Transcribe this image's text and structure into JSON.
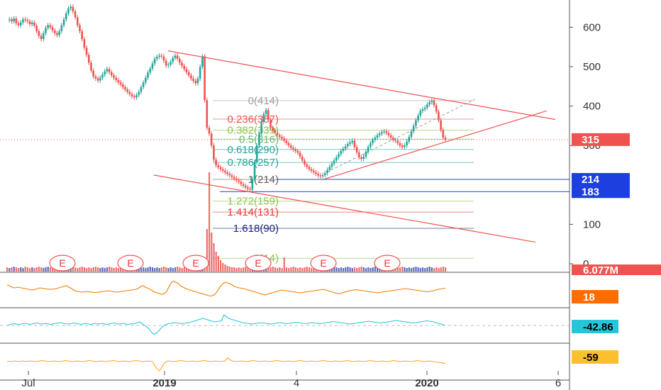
{
  "chart_data": {
    "type": "candlestick",
    "price_axis": {
      "ticks": [
        "600",
        "500",
        "400",
        "300",
        "100",
        "0"
      ],
      "tick_values": [
        600,
        500,
        400,
        300,
        100,
        0
      ],
      "ylim": [
        -5,
        660
      ]
    },
    "time_axis": {
      "ticks": [
        "Jul",
        "2019",
        "4",
        "2020",
        "6"
      ]
    },
    "price_series": [
      618,
      620,
      615,
      622,
      610,
      605,
      612,
      620,
      618,
      615,
      608,
      612,
      604,
      590,
      578,
      570,
      585,
      598,
      605,
      600,
      592,
      585,
      580,
      590,
      605,
      620,
      635,
      648,
      652,
      640,
      625,
      605,
      590,
      570,
      548,
      530,
      510,
      490,
      475,
      470,
      465,
      472,
      480,
      488,
      494,
      486,
      478,
      472,
      466,
      460,
      455,
      448,
      442,
      436,
      430,
      425,
      422,
      428,
      436,
      448,
      460,
      472,
      485,
      495,
      508,
      520,
      525,
      528,
      526,
      515,
      503,
      505,
      512,
      522,
      528,
      520,
      510,
      502,
      494,
      486,
      478,
      470,
      464,
      458,
      470,
      500,
      526,
      415,
      345,
      330,
      300,
      264,
      250,
      245,
      240,
      236,
      232,
      228,
      224,
      220,
      216,
      212,
      208,
      202,
      198,
      194,
      190,
      188,
      215,
      258,
      300,
      330,
      360,
      380,
      390,
      365,
      345,
      338,
      332,
      326,
      322,
      318,
      312,
      306,
      300,
      294,
      290,
      286,
      282,
      272,
      262,
      252,
      246,
      240,
      236,
      232,
      228,
      224,
      222,
      225,
      230,
      238,
      246,
      254,
      262,
      270,
      278,
      286,
      292,
      298,
      304,
      308,
      312,
      296,
      282,
      270,
      266,
      272,
      284,
      296,
      306,
      314,
      320,
      326,
      330,
      334,
      336,
      332,
      326,
      320,
      314,
      312,
      306,
      300,
      296,
      300,
      310,
      322,
      336,
      350,
      364,
      376,
      388,
      392,
      396,
      404,
      410,
      414,
      402,
      386,
      364,
      340,
      320,
      315
    ],
    "volume_series": [
      6,
      5,
      6,
      7,
      6,
      5,
      6,
      5,
      7,
      6,
      5,
      6,
      5,
      6,
      7,
      6,
      5,
      6,
      7,
      6,
      5,
      6,
      5,
      6,
      7,
      6,
      5,
      6,
      5,
      7,
      6,
      5,
      6,
      7,
      6,
      5,
      6,
      5,
      6,
      7,
      6,
      5,
      6,
      5,
      6,
      7,
      6,
      5,
      6,
      5,
      6,
      7,
      6,
      5,
      6,
      5,
      6,
      7,
      6,
      5,
      6,
      5,
      6,
      7,
      6,
      5,
      6,
      5,
      6,
      7,
      6,
      5,
      6,
      5,
      6,
      7,
      6,
      5,
      6,
      5,
      6,
      7,
      6,
      5,
      6,
      5,
      6,
      7,
      60,
      140,
      55,
      40,
      28,
      22,
      16,
      12,
      10,
      8,
      7,
      6,
      6,
      5,
      6,
      5,
      6,
      7,
      6,
      5,
      6,
      5,
      6,
      7,
      6,
      5,
      6,
      5,
      6,
      7,
      6,
      5,
      6,
      5,
      20,
      6,
      5,
      6,
      7,
      6,
      5,
      6,
      5,
      6,
      7,
      6,
      5,
      6,
      5,
      6,
      7,
      6,
      5,
      6,
      5,
      6,
      7,
      6,
      5,
      6,
      5,
      6,
      7,
      6,
      5,
      6,
      5,
      6,
      7,
      6,
      5,
      6,
      5,
      6,
      7,
      6,
      5,
      6,
      5,
      6,
      7,
      6,
      5,
      6,
      5,
      6,
      7,
      6,
      5,
      6,
      5,
      6,
      7,
      6,
      5,
      6,
      5,
      6,
      7,
      6,
      5,
      6,
      5,
      6,
      7,
      6,
      5,
      6,
      5,
      6,
      7
    ],
    "fib_levels": [
      {
        "label": "0(414)",
        "value": 414,
        "color": "#9e9e9e"
      },
      {
        "label": "0.236(367)",
        "value": 367,
        "color": "#ef5350"
      },
      {
        "label": "0.382(339)",
        "value": 339,
        "color": "#8bc34a"
      },
      {
        "label": "0.5(316)",
        "value": 316,
        "color": "#66bb6a"
      },
      {
        "label": "0.618(290)",
        "value": 290,
        "color": "#26a69a"
      },
      {
        "label": "0.786(257)",
        "value": 257,
        "color": "#26a69a"
      },
      {
        "label": "1(214)",
        "value": 214,
        "color": "#616161"
      },
      {
        "label": "1.272(159)",
        "value": 159,
        "color": "#8bc34a"
      },
      {
        "label": "1.414(131)",
        "value": 131,
        "color": "#e53935"
      },
      {
        "label": "1.618(90)",
        "value": 90,
        "color": "#1a237e"
      },
      {
        "label": "2(14)",
        "value": 14,
        "color": "#8bc34a"
      }
    ],
    "price_badges": [
      {
        "text": "315",
        "value": 315,
        "bg": "#ef5350",
        "fg": "#ffffff"
      },
      {
        "text": "214",
        "value": 214,
        "bg": "#1e3fe0",
        "fg": "#ffffff"
      },
      {
        "text": "183",
        "value": 183,
        "bg": "#1e3fe0",
        "fg": "#ffffff"
      }
    ],
    "volume_badge": {
      "text": "6.077M",
      "bg": "#ef5350",
      "fg": "#ffffff"
    },
    "earnings_markers": [
      "E",
      "E",
      "E",
      "E",
      "E",
      "E"
    ],
    "indicators": [
      {
        "name": "",
        "value_text": "18",
        "color": "#ef7d00",
        "badge_bg": "#ff6d00",
        "badge_fg": "#ffffff",
        "series": [
          64,
          62,
          58,
          56,
          57,
          58,
          56,
          55,
          54,
          52,
          51,
          50,
          52,
          54,
          56,
          55,
          54,
          53,
          52,
          52,
          53,
          54,
          56,
          58,
          60,
          62,
          60,
          56,
          52,
          48,
          46,
          45,
          44,
          45,
          46,
          45,
          44,
          43,
          43,
          44,
          45,
          46,
          47,
          48,
          47,
          46,
          45,
          44,
          45,
          46,
          47,
          48,
          49,
          50,
          51,
          52,
          55,
          60,
          62,
          58,
          55,
          52,
          48,
          44,
          42,
          40,
          38,
          40,
          45,
          58,
          70,
          75,
          72,
          68,
          62,
          58,
          55,
          52,
          50,
          48,
          46,
          44,
          42,
          40,
          38,
          36,
          34,
          33,
          35,
          40,
          50,
          60,
          68,
          72,
          70,
          68,
          64,
          60,
          58,
          56,
          55,
          54,
          52,
          50,
          48,
          46,
          44,
          42,
          40,
          38,
          36,
          38,
          40,
          42,
          44,
          46,
          48,
          50,
          49,
          48,
          47,
          46,
          45,
          44,
          43,
          42,
          43,
          44,
          45,
          46,
          47,
          48,
          49,
          50,
          51,
          52,
          50,
          48,
          46,
          44,
          42,
          40,
          40,
          42,
          44,
          46,
          48,
          49,
          50,
          51,
          50,
          49,
          48,
          47,
          46,
          45,
          44,
          43,
          42,
          43,
          44,
          45,
          46,
          47,
          48,
          49,
          50,
          51,
          52,
          53,
          54,
          53,
          52,
          51,
          50,
          49,
          48,
          47,
          46,
          45,
          46,
          47,
          48,
          50,
          52,
          53,
          54,
          55
        ]
      },
      {
        "name": "",
        "value_text": "-42.86",
        "color": "#26c6da",
        "badge_bg": "#26c6da",
        "badge_fg": "#000000",
        "series": [
          50,
          52,
          54,
          55,
          54,
          53,
          54,
          55,
          56,
          54,
          53,
          55,
          56,
          57,
          55,
          54,
          55,
          56,
          54,
          53,
          55,
          56,
          57,
          58,
          56,
          55,
          54,
          55,
          56,
          57,
          55,
          54,
          53,
          55,
          56,
          54,
          53,
          55,
          56,
          54,
          55,
          56,
          54,
          53,
          55,
          56,
          57,
          55,
          54,
          55,
          56,
          54,
          53,
          55,
          54,
          56,
          58,
          60,
          55,
          50,
          45,
          40,
          30,
          25,
          28,
          35,
          42,
          48,
          52,
          55,
          56,
          57,
          58,
          57,
          56,
          55,
          56,
          57,
          58,
          60,
          62,
          64,
          66,
          68,
          70,
          68,
          66,
          64,
          62,
          60,
          61,
          62,
          64,
          80,
          75,
          70,
          68,
          66,
          64,
          62,
          60,
          58,
          57,
          56,
          55,
          54,
          55,
          56,
          57,
          58,
          57,
          56,
          55,
          54,
          55,
          56,
          57,
          58,
          57,
          56,
          55,
          56,
          57,
          58,
          59,
          58,
          57,
          56,
          55,
          56,
          57,
          58,
          57,
          56,
          55,
          56,
          57,
          58,
          59,
          60,
          61,
          60,
          59,
          58,
          57,
          56,
          55,
          54,
          55,
          56,
          57,
          58,
          59,
          60,
          61,
          62,
          61,
          60,
          59,
          58,
          57,
          58,
          59,
          60,
          61,
          62,
          63,
          64,
          63,
          62,
          61,
          60,
          59,
          58,
          57,
          58,
          59,
          60,
          61,
          62,
          63,
          62,
          61,
          60,
          58,
          56,
          54,
          52,
          50
        ]
      },
      {
        "name": "",
        "value_text": "-59",
        "color": "#f9a825",
        "badge_bg": "#fbc02d",
        "badge_fg": "#000000",
        "series": [
          50,
          51,
          50,
          52,
          51,
          50,
          51,
          52,
          50,
          51,
          52,
          51,
          50,
          51,
          52,
          53,
          52,
          51,
          50,
          51,
          52,
          51,
          50,
          51,
          52,
          53,
          52,
          51,
          50,
          51,
          52,
          51,
          50,
          51,
          52,
          53,
          52,
          51,
          50,
          51,
          52,
          51,
          50,
          51,
          52,
          53,
          52,
          51,
          50,
          51,
          52,
          51,
          50,
          51,
          52,
          53,
          52,
          51,
          50,
          51,
          52,
          51,
          50,
          40,
          30,
          25,
          35,
          45,
          50,
          52,
          51,
          50,
          51,
          52,
          53,
          52,
          51,
          50,
          51,
          52,
          51,
          50,
          51,
          52,
          53,
          52,
          51,
          50,
          51,
          52,
          51,
          50,
          51,
          52,
          60,
          55,
          52,
          51,
          50,
          51,
          52,
          51,
          50,
          51,
          52,
          53,
          52,
          51,
          50,
          51,
          52,
          51,
          50,
          51,
          52,
          53,
          52,
          51,
          50,
          51,
          52,
          51,
          50,
          51,
          52,
          53,
          52,
          51,
          50,
          51,
          52,
          51,
          50,
          51,
          52,
          53,
          52,
          51,
          50,
          51,
          52,
          51,
          50,
          51,
          52,
          53,
          52,
          51,
          50,
          51,
          52,
          51,
          50,
          51,
          52,
          53,
          52,
          51,
          50,
          51,
          52,
          51,
          50,
          51,
          52,
          53,
          52,
          51,
          50,
          51,
          52,
          51,
          50,
          51,
          52,
          53,
          52,
          51,
          50,
          51,
          52,
          51,
          50,
          49,
          48,
          47,
          46,
          45
        ]
      }
    ],
    "trendlines": [
      {
        "name": "upper-trendline",
        "from": {
          "bar": 0.295,
          "value": 540
        },
        "to": {
          "bar": 0.975,
          "value": 366
        }
      },
      {
        "name": "lower-support-trendline",
        "from": {
          "bar": 0.57,
          "value": 215
        },
        "to": {
          "bar": 0.96,
          "value": 388
        }
      },
      {
        "name": "lower-channel-line",
        "from": {
          "bar": 0.27,
          "value": 225
        },
        "to": {
          "bar": 0.94,
          "value": 55
        }
      }
    ]
  }
}
